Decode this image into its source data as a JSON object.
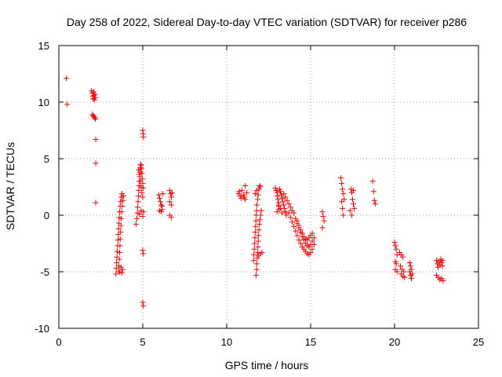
{
  "chart_data": {
    "type": "scatter",
    "title": "Day 258 of 2022, Sidereal Day-to-day VTEC variation (SDTVAR) for receiver p286",
    "xlabel": "GPS time / hours",
    "ylabel": "SDTVAR / TECUs",
    "xlim": [
      0,
      25
    ],
    "ylim": [
      -10,
      15
    ],
    "xticks": [
      0,
      5,
      10,
      15,
      20,
      25
    ],
    "yticks": [
      -10,
      -5,
      0,
      5,
      10,
      15
    ],
    "xtick_labels": [
      "0",
      "5",
      "10",
      "15",
      "20",
      "25"
    ],
    "ytick_labels": [
      "-10",
      "-5",
      "0",
      "5",
      "10",
      "15"
    ],
    "grid": true,
    "marker": "+",
    "color": "#ff0000",
    "series": [
      {
        "name": "p286",
        "points": [
          [
            0.45,
            12.1
          ],
          [
            0.5,
            9.8
          ],
          [
            1.95,
            11.0
          ],
          [
            2.0,
            10.8
          ],
          [
            2.02,
            10.5
          ],
          [
            2.05,
            10.3
          ],
          [
            2.08,
            10.9
          ],
          [
            2.1,
            10.6
          ],
          [
            2.12,
            10.2
          ],
          [
            2.15,
            10.7
          ],
          [
            2.18,
            10.4
          ],
          [
            2.0,
            8.9
          ],
          [
            2.05,
            8.8
          ],
          [
            2.1,
            8.7
          ],
          [
            2.15,
            8.6
          ],
          [
            2.18,
            8.5
          ],
          [
            2.2,
            6.7
          ],
          [
            2.2,
            4.6
          ],
          [
            2.2,
            1.1
          ],
          [
            3.4,
            -5.2
          ],
          [
            3.42,
            -4.7
          ],
          [
            3.44,
            -4.2
          ],
          [
            3.46,
            -3.7
          ],
          [
            3.48,
            -3.2
          ],
          [
            3.5,
            -2.7
          ],
          [
            3.52,
            -2.2
          ],
          [
            3.54,
            -1.7
          ],
          [
            3.56,
            -1.2
          ],
          [
            3.58,
            -0.7
          ],
          [
            3.6,
            -0.2
          ],
          [
            3.62,
            0.3
          ],
          [
            3.65,
            0.8
          ],
          [
            3.68,
            1.2
          ],
          [
            3.72,
            1.6
          ],
          [
            3.76,
            1.9
          ],
          [
            3.55,
            -5.0
          ],
          [
            3.58,
            -4.5
          ],
          [
            3.6,
            -3.9
          ],
          [
            3.62,
            -3.3
          ],
          [
            3.64,
            -2.7
          ],
          [
            3.66,
            -2.1
          ],
          [
            3.68,
            -1.5
          ],
          [
            3.7,
            -0.9
          ],
          [
            3.72,
            -0.3
          ],
          [
            3.74,
            0.3
          ],
          [
            3.78,
            0.8
          ],
          [
            3.82,
            1.3
          ],
          [
            3.85,
            1.7
          ],
          [
            3.62,
            -5.0
          ],
          [
            3.7,
            -4.6
          ],
          [
            3.75,
            -5.1
          ],
          [
            3.8,
            -4.8
          ],
          [
            4.6,
            -0.8
          ],
          [
            4.65,
            -0.3
          ],
          [
            4.68,
            0.2
          ],
          [
            4.7,
            0.7
          ],
          [
            4.72,
            1.2
          ],
          [
            4.74,
            1.7
          ],
          [
            4.76,
            2.2
          ],
          [
            4.78,
            2.6
          ],
          [
            4.8,
            3.0
          ],
          [
            4.82,
            3.4
          ],
          [
            4.84,
            3.8
          ],
          [
            4.86,
            4.2
          ],
          [
            4.88,
            4.5
          ],
          [
            4.9,
            4.4
          ],
          [
            4.92,
            4.1
          ],
          [
            4.95,
            3.7
          ],
          [
            4.98,
            3.2
          ],
          [
            5.0,
            2.8
          ],
          [
            5.02,
            2.4
          ],
          [
            4.75,
            4.0
          ],
          [
            4.8,
            3.6
          ],
          [
            4.85,
            3.0
          ],
          [
            4.9,
            2.5
          ],
          [
            4.95,
            2.0
          ],
          [
            5.0,
            1.6
          ],
          [
            4.8,
            0.1
          ],
          [
            4.9,
            0.4
          ],
          [
            5.0,
            -0.1
          ],
          [
            5.05,
            0.3
          ],
          [
            5.0,
            7.5
          ],
          [
            5.02,
            7.2
          ],
          [
            5.04,
            6.9
          ],
          [
            5.0,
            -3.1
          ],
          [
            5.03,
            -3.4
          ],
          [
            5.0,
            -7.7
          ],
          [
            5.03,
            -8.0
          ],
          [
            5.95,
            1.8
          ],
          [
            6.0,
            1.5
          ],
          [
            6.05,
            1.2
          ],
          [
            6.1,
            0.9
          ],
          [
            6.15,
            0.5
          ],
          [
            6.2,
            1.9
          ],
          [
            6.0,
            0.4
          ],
          [
            6.1,
            0.3
          ],
          [
            6.15,
            0.8
          ],
          [
            6.6,
            2.2
          ],
          [
            6.65,
            1.9
          ],
          [
            6.7,
            1.6
          ],
          [
            6.75,
            2.0
          ],
          [
            6.6,
            1.2
          ],
          [
            6.7,
            0.9
          ],
          [
            6.6,
            0.0
          ],
          [
            6.7,
            -0.2
          ],
          [
            10.7,
            1.9
          ],
          [
            10.75,
            2.1
          ],
          [
            10.8,
            1.7
          ],
          [
            10.85,
            1.5
          ],
          [
            10.9,
            2.2
          ],
          [
            11.0,
            1.8
          ],
          [
            11.05,
            1.6
          ],
          [
            11.1,
            2.6
          ],
          [
            11.2,
            2.0
          ],
          [
            11.1,
            1.4
          ],
          [
            11.6,
            -4.0
          ],
          [
            11.62,
            -3.5
          ],
          [
            11.64,
            -3.0
          ],
          [
            11.66,
            -2.5
          ],
          [
            11.68,
            -2.0
          ],
          [
            11.7,
            -1.5
          ],
          [
            11.72,
            -1.0
          ],
          [
            11.74,
            -0.5
          ],
          [
            11.76,
            0.0
          ],
          [
            11.78,
            0.4
          ],
          [
            11.8,
            0.9
          ],
          [
            11.84,
            1.4
          ],
          [
            11.88,
            1.8
          ],
          [
            11.92,
            2.3
          ],
          [
            11.96,
            2.6
          ],
          [
            11.75,
            -5.3
          ],
          [
            11.78,
            -4.8
          ],
          [
            11.8,
            -4.3
          ],
          [
            11.82,
            -3.8
          ],
          [
            11.84,
            -3.3
          ],
          [
            11.86,
            -2.8
          ],
          [
            11.88,
            -2.3
          ],
          [
            11.9,
            -1.8
          ],
          [
            11.92,
            -1.3
          ],
          [
            11.95,
            -0.8
          ],
          [
            11.98,
            -0.4
          ],
          [
            12.02,
            0.0
          ],
          [
            12.06,
            0.4
          ],
          [
            11.9,
            -3.6
          ],
          [
            12.0,
            -3.4
          ],
          [
            12.1,
            -3.3
          ],
          [
            11.7,
            1.9
          ],
          [
            11.8,
            2.2
          ],
          [
            12.0,
            2.5
          ],
          [
            12.9,
            2.4
          ],
          [
            12.95,
            2.2
          ],
          [
            13.0,
            2.0
          ],
          [
            13.02,
            1.7
          ],
          [
            13.05,
            1.4
          ],
          [
            13.08,
            1.1
          ],
          [
            13.1,
            0.8
          ],
          [
            13.12,
            0.5
          ],
          [
            13.15,
            2.3
          ],
          [
            13.2,
            2.1
          ],
          [
            13.25,
            1.8
          ],
          [
            13.3,
            1.5
          ],
          [
            13.35,
            1.2
          ],
          [
            13.4,
            0.9
          ],
          [
            13.45,
            0.6
          ],
          [
            13.5,
            0.3
          ],
          [
            13.55,
            0.0
          ],
          [
            13.0,
            0.3
          ],
          [
            13.1,
            0.9
          ],
          [
            13.2,
            0.6
          ],
          [
            13.3,
            0.2
          ],
          [
            13.4,
            1.9
          ],
          [
            13.5,
            1.6
          ],
          [
            13.6,
            1.3
          ],
          [
            13.7,
            1.0
          ],
          [
            13.8,
            0.7
          ],
          [
            13.9,
            0.4
          ],
          [
            13.7,
            0.2
          ],
          [
            13.8,
            -0.2
          ],
          [
            13.9,
            -0.6
          ],
          [
            14.0,
            -1.0
          ],
          [
            14.1,
            -1.4
          ],
          [
            14.2,
            -1.8
          ],
          [
            14.3,
            -2.2
          ],
          [
            14.4,
            -2.5
          ],
          [
            14.5,
            -2.8
          ],
          [
            14.6,
            -3.0
          ],
          [
            14.7,
            -3.2
          ],
          [
            14.8,
            -3.4
          ],
          [
            14.9,
            -3.5
          ],
          [
            15.0,
            -3.3
          ],
          [
            15.1,
            -3.0
          ],
          [
            15.2,
            -2.6
          ],
          [
            14.0,
            0.2
          ],
          [
            14.1,
            -0.3
          ],
          [
            14.2,
            -0.7
          ],
          [
            14.3,
            -1.1
          ],
          [
            14.4,
            -1.5
          ],
          [
            14.5,
            -1.9
          ],
          [
            14.6,
            -2.2
          ],
          [
            14.7,
            -2.5
          ],
          [
            14.8,
            -2.7
          ],
          [
            14.9,
            -2.8
          ],
          [
            15.0,
            -2.6
          ],
          [
            15.1,
            -2.3
          ],
          [
            15.2,
            -2.0
          ],
          [
            14.2,
            -0.5
          ],
          [
            14.3,
            -0.9
          ],
          [
            14.4,
            -1.3
          ],
          [
            14.5,
            -1.6
          ],
          [
            14.6,
            -1.9
          ],
          [
            14.7,
            -2.1
          ],
          [
            14.8,
            -2.2
          ],
          [
            14.9,
            -2.0
          ],
          [
            15.0,
            -1.8
          ],
          [
            15.1,
            -1.6
          ],
          [
            15.7,
            0.3
          ],
          [
            15.75,
            -0.1
          ],
          [
            15.8,
            -0.5
          ],
          [
            15.7,
            -1.1
          ],
          [
            16.8,
            3.3
          ],
          [
            16.85,
            2.8
          ],
          [
            16.9,
            2.3
          ],
          [
            16.95,
            1.9
          ],
          [
            16.85,
            1.2
          ],
          [
            16.9,
            0.6
          ],
          [
            16.95,
            0.0
          ],
          [
            17.0,
            1.4
          ],
          [
            17.4,
            2.3
          ],
          [
            17.45,
            2.0
          ],
          [
            17.5,
            1.4
          ],
          [
            17.55,
            1.0
          ],
          [
            17.6,
            0.6
          ],
          [
            17.35,
            0.4
          ],
          [
            17.45,
            0.0
          ],
          [
            17.55,
            2.2
          ],
          [
            18.7,
            3.0
          ],
          [
            18.75,
            2.1
          ],
          [
            18.8,
            1.3
          ],
          [
            18.85,
            1.0
          ],
          [
            20.0,
            -2.4
          ],
          [
            20.05,
            -2.7
          ],
          [
            20.1,
            -3.0
          ],
          [
            20.15,
            -3.5
          ],
          [
            20.05,
            -4.1
          ],
          [
            20.1,
            -4.3
          ],
          [
            20.05,
            -4.8
          ],
          [
            20.15,
            -5.0
          ],
          [
            20.3,
            -3.3
          ],
          [
            20.4,
            -3.5
          ],
          [
            20.5,
            -3.7
          ],
          [
            20.35,
            -4.5
          ],
          [
            20.45,
            -4.8
          ],
          [
            20.55,
            -5.0
          ],
          [
            20.4,
            -5.2
          ],
          [
            20.5,
            -5.4
          ],
          [
            20.6,
            -5.5
          ],
          [
            20.9,
            -4.2
          ],
          [
            20.95,
            -4.5
          ],
          [
            21.0,
            -4.8
          ],
          [
            20.9,
            -5.0
          ],
          [
            20.95,
            -5.3
          ],
          [
            21.0,
            -5.6
          ],
          [
            21.05,
            -5.2
          ],
          [
            22.5,
            -4.0
          ],
          [
            22.55,
            -4.3
          ],
          [
            22.6,
            -4.6
          ],
          [
            22.65,
            -4.1
          ],
          [
            22.7,
            -4.4
          ],
          [
            22.75,
            -3.9
          ],
          [
            22.8,
            -4.2
          ],
          [
            22.85,
            -4.5
          ],
          [
            22.5,
            -5.3
          ],
          [
            22.6,
            -5.5
          ],
          [
            22.7,
            -5.7
          ],
          [
            22.8,
            -5.6
          ],
          [
            22.9,
            -5.8
          ],
          [
            22.85,
            -4.0
          ]
        ]
      }
    ]
  }
}
